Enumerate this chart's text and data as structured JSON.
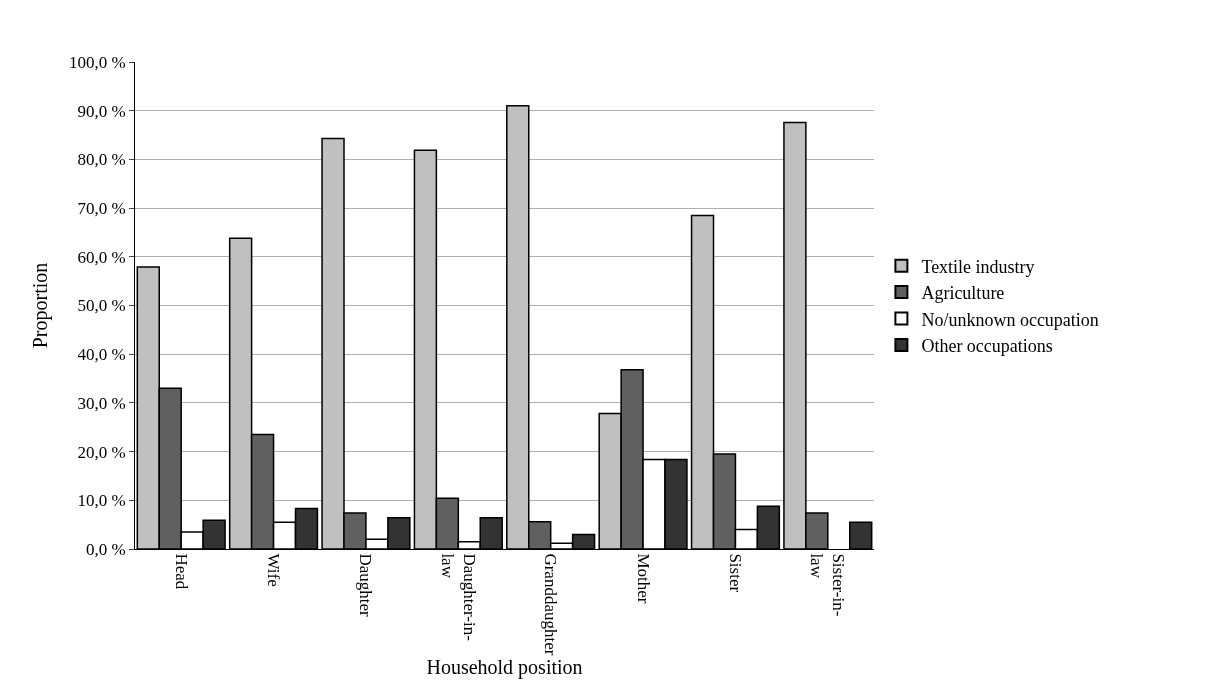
{
  "chart_data": {
    "type": "bar",
    "xlabel": "Household position",
    "ylabel": "Proportion",
    "categories": [
      "Head",
      "Wife",
      "Daughter",
      "Daughter-in-law",
      "Granddaughter",
      "Mother",
      "Sister",
      "Sister-in-law"
    ],
    "series": [
      {
        "name": "Textile industry",
        "color": "#c0c0c0",
        "values": [
          57.9,
          63.8,
          84.3,
          81.9,
          91.0,
          27.8,
          68.5,
          87.6
        ]
      },
      {
        "name": "Agriculture",
        "color": "#606060",
        "values": [
          33.0,
          23.5,
          7.4,
          10.4,
          5.6,
          36.8,
          19.5,
          7.4
        ]
      },
      {
        "name": "No/unknown occupation",
        "color": "#ffffff",
        "values": [
          3.5,
          5.5,
          2.0,
          1.5,
          1.2,
          18.4,
          4.0,
          0
        ]
      },
      {
        "name": "Other occupations",
        "color": "#333333",
        "values": [
          5.9,
          8.3,
          6.4,
          6.4,
          3.0,
          18.4,
          8.8,
          5.5
        ]
      }
    ],
    "ylim": [
      0,
      100
    ],
    "yticks": [
      {
        "value": 0,
        "label": "0,0 %"
      },
      {
        "value": 10,
        "label": "10,0 %"
      },
      {
        "value": 20,
        "label": "20,0 %"
      },
      {
        "value": 30,
        "label": "30,0 %"
      },
      {
        "value": 40,
        "label": "40,0 %"
      },
      {
        "value": 50,
        "label": "50,0 %"
      },
      {
        "value": 60,
        "label": "60,0 %"
      },
      {
        "value": 70,
        "label": "70,0 %"
      },
      {
        "value": 80,
        "label": "80,0 %"
      },
      {
        "value": 90,
        "label": "90,0 %"
      },
      {
        "value": 100,
        "label": "100,0 %"
      }
    ],
    "grid": "y",
    "legend": "right"
  }
}
